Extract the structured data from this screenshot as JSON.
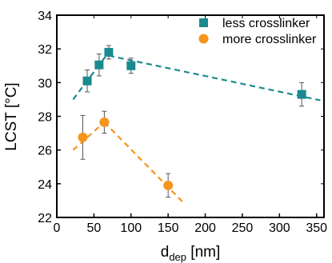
{
  "chart_data": {
    "type": "scatter",
    "xlabel": "d",
    "xlabel_sub": "dep",
    "xlabel_unit": " [nm]",
    "ylabel": "LCST [°C]",
    "xlim": [
      0,
      360
    ],
    "ylim": [
      22,
      34
    ],
    "xticks": [
      0,
      50,
      100,
      150,
      200,
      250,
      300,
      350
    ],
    "yticks": [
      22,
      24,
      26,
      28,
      30,
      32,
      34
    ],
    "grid": false,
    "legend_position": "top-right",
    "series": [
      {
        "name": "less crosslinker",
        "color": "#1a8a8f",
        "marker": "square",
        "points": [
          {
            "x": 41,
            "y": 30.1,
            "err": 0.65
          },
          {
            "x": 57,
            "y": 31.05,
            "err": 0.65
          },
          {
            "x": 70,
            "y": 31.8,
            "err": 0.4
          },
          {
            "x": 100,
            "y": 31.0,
            "err": 0.45
          },
          {
            "x": 330,
            "y": 29.3,
            "err": 0.7
          }
        ],
        "trendlines": [
          {
            "x": [
              22,
              70
            ],
            "y": [
              29.0,
              31.8
            ]
          },
          {
            "x": [
              70,
              355
            ],
            "y": [
              31.6,
              28.95
            ]
          }
        ]
      },
      {
        "name": "more crosslinker",
        "color": "#f7941d",
        "marker": "circle",
        "points": [
          {
            "x": 35,
            "y": 26.75,
            "err": 1.3
          },
          {
            "x": 64,
            "y": 27.65,
            "err": 0.65
          },
          {
            "x": 150,
            "y": 23.9,
            "err": 0.7
          }
        ],
        "trendlines": [
          {
            "x": [
              22,
              64
            ],
            "y": [
              26.0,
              27.65
            ]
          },
          {
            "x": [
              64,
              170
            ],
            "y": [
              27.65,
              22.9
            ]
          }
        ]
      }
    ]
  }
}
